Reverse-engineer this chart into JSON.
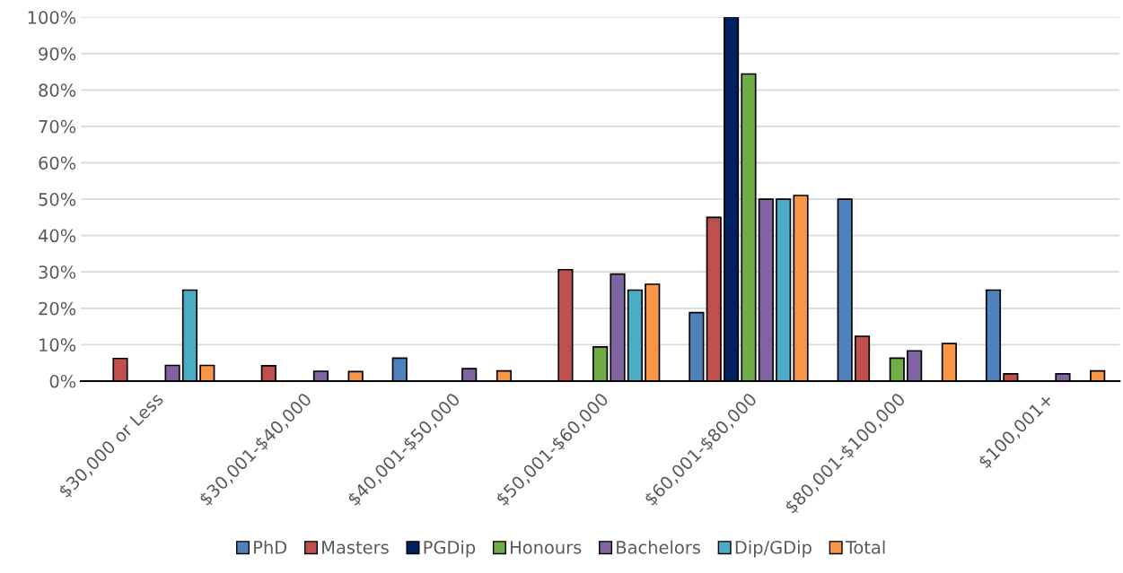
{
  "chart_data": {
    "type": "bar",
    "categories": [
      "$30,000 or Less",
      "$30,001-$40,000",
      "$40,001-$50,000",
      "$50,001-$60,000",
      "$60,001-$80,000",
      "$80,001-$100,000",
      "$100,001+"
    ],
    "series": [
      {
        "name": "PhD",
        "color": "#4f81bd",
        "values": [
          null,
          null,
          6.3,
          null,
          18.8,
          50,
          25
        ]
      },
      {
        "name": "Masters",
        "color": "#c0504d",
        "values": [
          6.2,
          4.2,
          null,
          30.6,
          45,
          12.3,
          2
        ]
      },
      {
        "name": "PGDip",
        "color": "#002060",
        "values": [
          null,
          null,
          null,
          null,
          100,
          null,
          null
        ]
      },
      {
        "name": "Honours",
        "color": "#70ad47",
        "values": [
          null,
          null,
          null,
          9.4,
          84.4,
          6.3,
          null
        ]
      },
      {
        "name": "Bachelors",
        "color": "#8064a2",
        "values": [
          4.3,
          2.7,
          3.4,
          29.4,
          50,
          8.3,
          2
        ]
      },
      {
        "name": "Dip/GDip",
        "color": "#4bacc6",
        "values": [
          25,
          null,
          null,
          25,
          50,
          null,
          null
        ]
      },
      {
        "name": "Total",
        "color": "#f79646",
        "values": [
          4.3,
          2.6,
          2.8,
          26.6,
          51,
          10.3,
          2.8
        ]
      }
    ],
    "ylim": [
      0,
      100
    ],
    "yticks": [
      {
        "value": 0,
        "label": "0%"
      },
      {
        "value": 10,
        "label": "10%"
      },
      {
        "value": 20,
        "label": "20%"
      },
      {
        "value": 30,
        "label": "30%"
      },
      {
        "value": 40,
        "label": "40%"
      },
      {
        "value": 50,
        "label": "50%"
      },
      {
        "value": 60,
        "label": "60%"
      },
      {
        "value": 70,
        "label": "70%"
      },
      {
        "value": 80,
        "label": "80%"
      },
      {
        "value": 90,
        "label": "90%"
      },
      {
        "value": 100,
        "label": "100%"
      }
    ],
    "grid": "y",
    "legend": "bottom"
  }
}
